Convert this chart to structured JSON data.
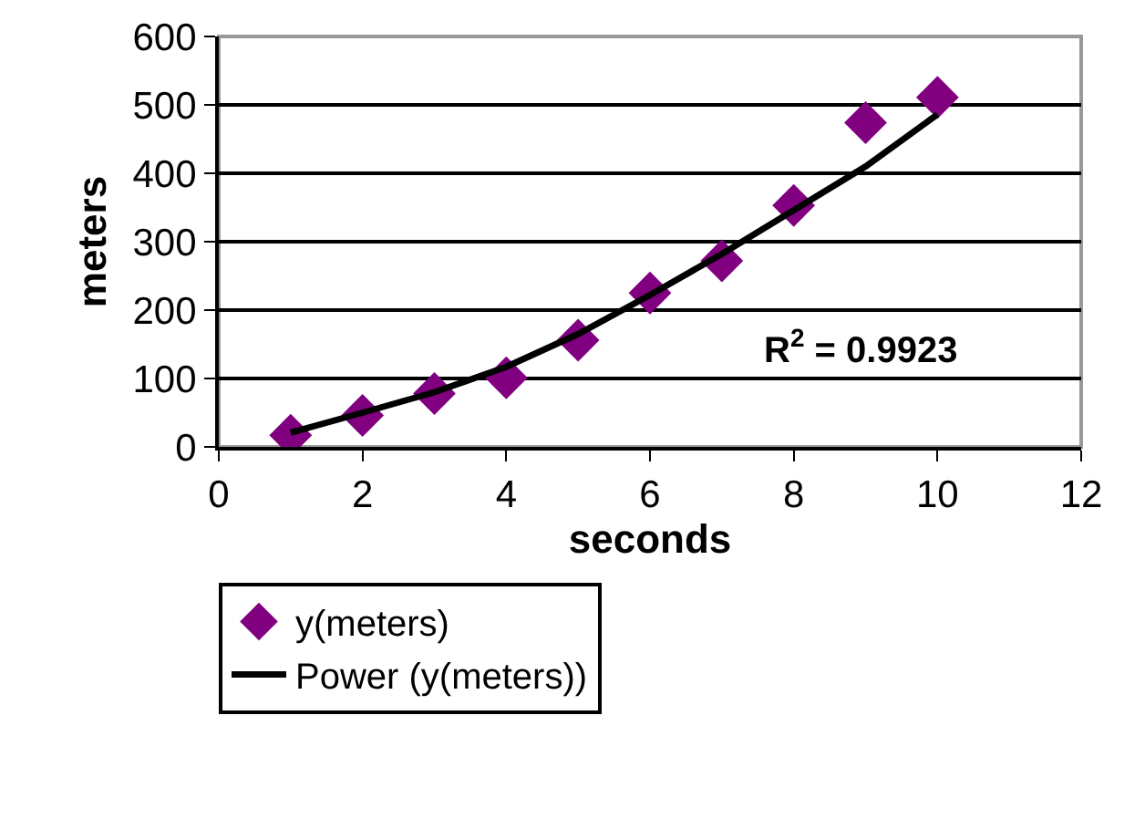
{
  "chart_data": {
    "type": "scatter",
    "xlabel": "seconds",
    "ylabel": "meters",
    "x": [
      1,
      2,
      3,
      4,
      5,
      6,
      7,
      8,
      9,
      10
    ],
    "series": [
      {
        "name": "y(meters)",
        "color": "#800080",
        "marker": "diamond",
        "values": [
          17,
          46,
          78,
          101,
          156,
          225,
          272,
          353,
          474,
          511
        ]
      },
      {
        "name": "Power (y(meters))",
        "type": "line",
        "color": "#000000",
        "marker": "none",
        "line_style": "solid",
        "values": [
          21,
          50,
          80,
          117,
          165,
          222,
          282,
          346,
          410,
          486
        ]
      }
    ],
    "xlim": [
      0,
      12
    ],
    "xticks": [
      0,
      2,
      4,
      6,
      8,
      10,
      12
    ],
    "ylim": [
      0,
      600
    ],
    "yticks": [
      0,
      100,
      200,
      300,
      400,
      500,
      600
    ],
    "grid": "y",
    "legend": "bottom left",
    "annotations": [
      "R$^{2}$ = 0.9923"
    ]
  }
}
